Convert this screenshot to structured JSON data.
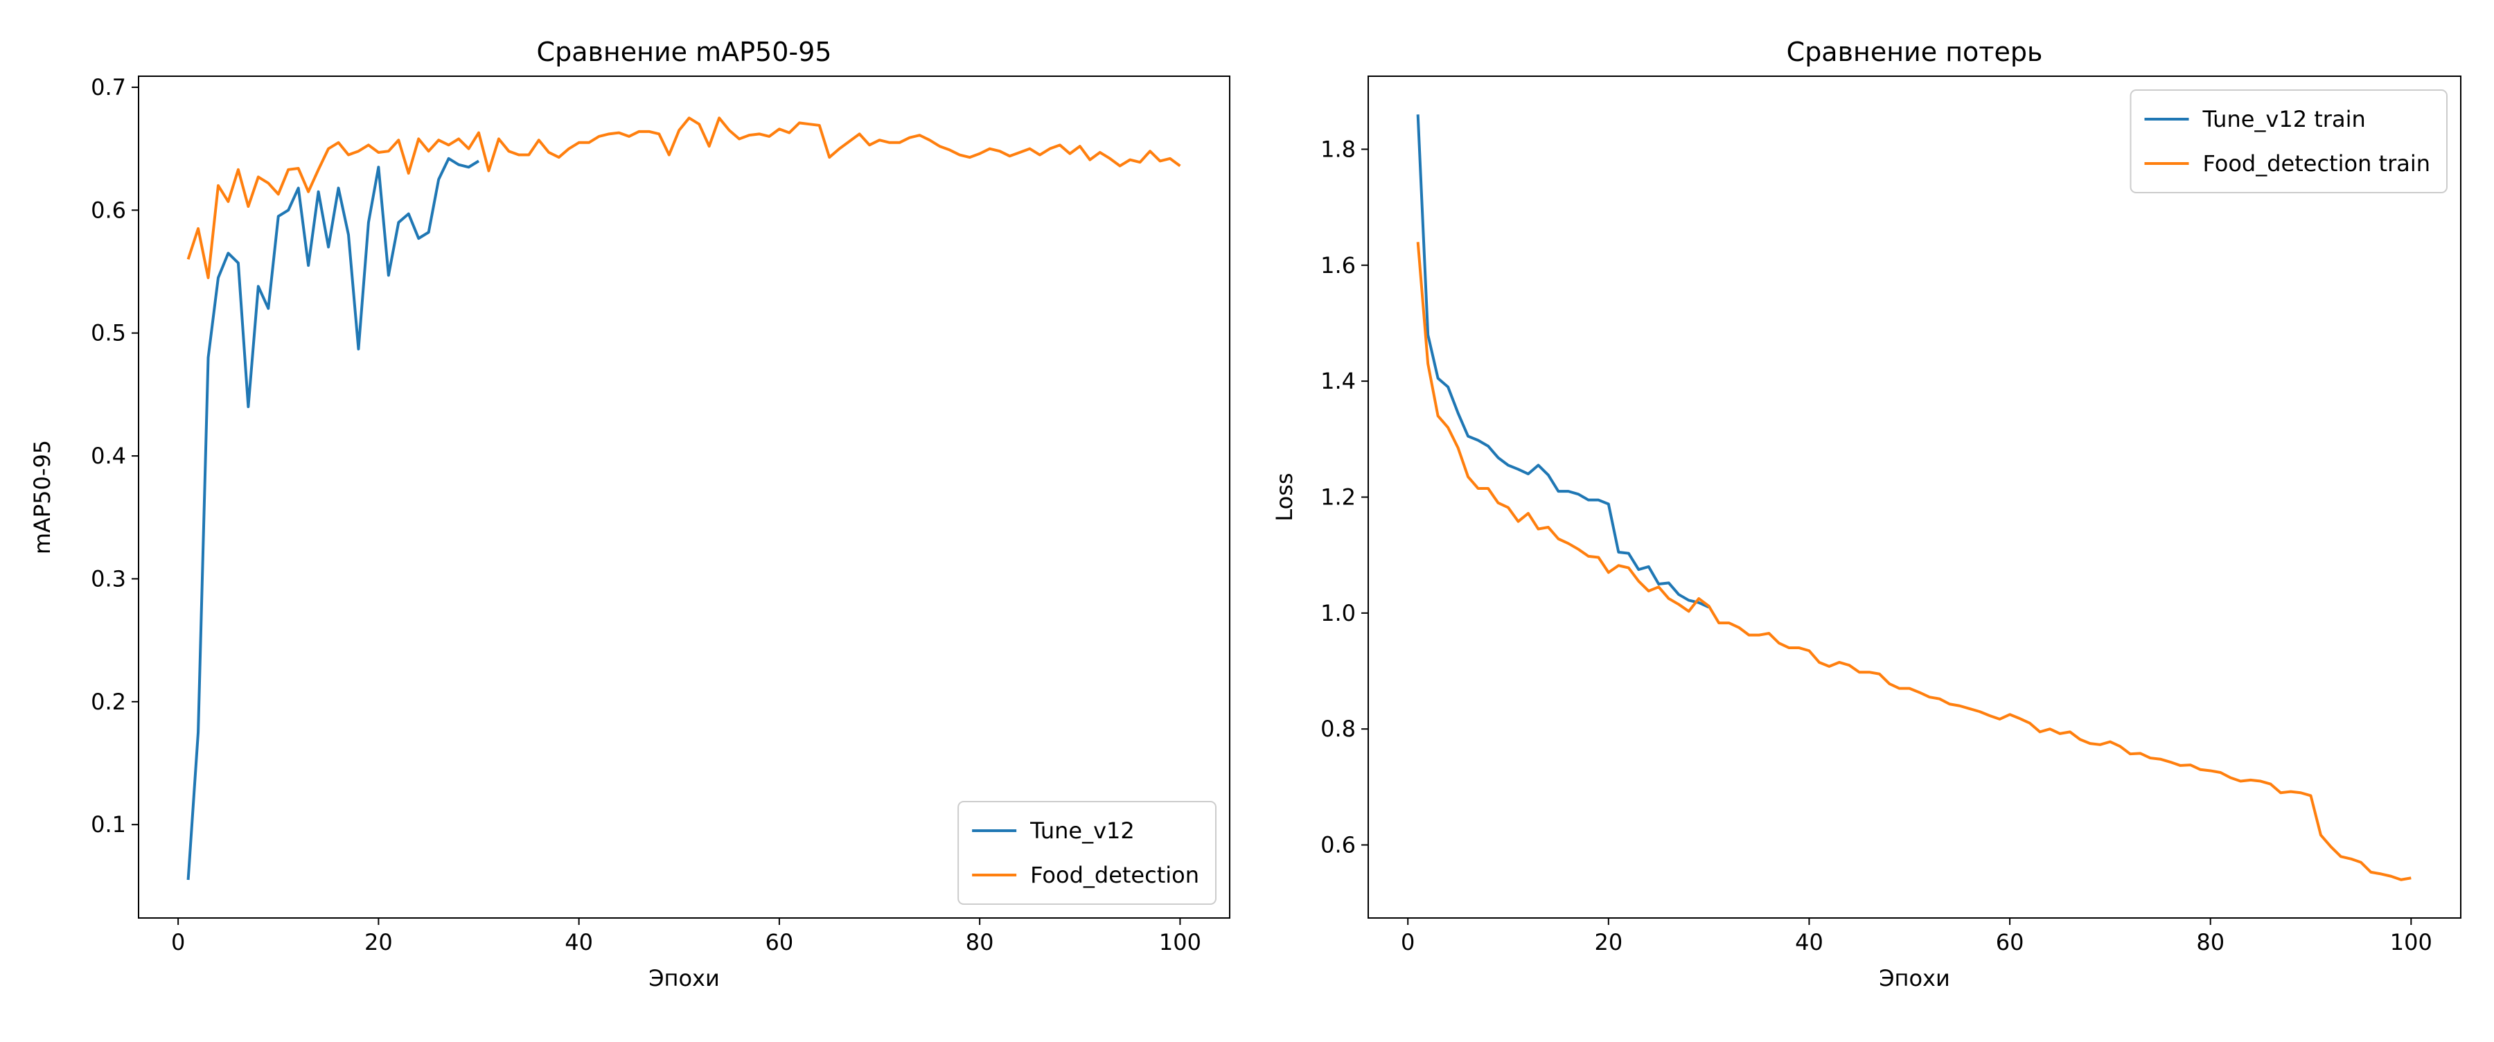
{
  "chart_data": [
    {
      "type": "line",
      "title": "Сравнение mAP50-95",
      "xlabel": "Эпохи",
      "ylabel": "mAP50-95",
      "xlim": [
        -3.95,
        104.95
      ],
      "ylim": [
        0.024,
        0.709
      ],
      "xticks": [
        0,
        20,
        40,
        60,
        80,
        100
      ],
      "yticks": [
        0.1,
        0.2,
        0.3,
        0.4,
        0.5,
        0.6,
        0.7
      ],
      "legend": "lower right",
      "series": [
        {
          "name": "Tune_v12",
          "color": "#1f77b4",
          "x": [
            1,
            2,
            3,
            4,
            5,
            6,
            7,
            8,
            9,
            10,
            11,
            12,
            13,
            14,
            15,
            16,
            17,
            18,
            19,
            20,
            21,
            22,
            23,
            24,
            25,
            26,
            27,
            28,
            29,
            30
          ],
          "values": [
            0.055,
            0.175,
            0.48,
            0.545,
            0.565,
            0.557,
            0.44,
            0.538,
            0.52,
            0.595,
            0.6,
            0.618,
            0.555,
            0.615,
            0.57,
            0.618,
            0.58,
            0.487,
            0.59,
            0.635,
            0.547,
            0.59,
            0.597,
            0.577,
            0.582,
            0.625,
            0.642,
            0.637,
            0.635,
            0.64
          ]
        },
        {
          "name": "Food_detection",
          "color": "#ff7f0e",
          "x": [
            1,
            2,
            3,
            4,
            5,
            6,
            7,
            8,
            9,
            10,
            11,
            12,
            13,
            14,
            15,
            16,
            17,
            18,
            19,
            20,
            21,
            22,
            23,
            24,
            25,
            26,
            27,
            28,
            29,
            30,
            31,
            32,
            33,
            34,
            35,
            36,
            37,
            38,
            39,
            40,
            41,
            42,
            43,
            44,
            45,
            46,
            47,
            48,
            49,
            50,
            51,
            52,
            53,
            54,
            55,
            56,
            57,
            58,
            59,
            60,
            61,
            62,
            63,
            64,
            65,
            66,
            67,
            68,
            69,
            70,
            71,
            72,
            73,
            74,
            75,
            76,
            77,
            78,
            79,
            80,
            81,
            82,
            83,
            84,
            85,
            86,
            87,
            88,
            89,
            90,
            91,
            92,
            93,
            94,
            95,
            96,
            97,
            98,
            99,
            100
          ],
          "values": [
            0.56,
            0.585,
            0.545,
            0.62,
            0.607,
            0.633,
            0.603,
            0.627,
            0.622,
            0.613,
            0.633,
            0.634,
            0.615,
            0.633,
            0.65,
            0.655,
            0.645,
            0.648,
            0.653,
            0.647,
            0.648,
            0.657,
            0.63,
            0.658,
            0.648,
            0.657,
            0.653,
            0.658,
            0.65,
            0.663,
            0.632,
            0.658,
            0.648,
            0.645,
            0.645,
            0.657,
            0.647,
            0.643,
            0.65,
            0.655,
            0.655,
            0.66,
            0.662,
            0.663,
            0.66,
            0.664,
            0.664,
            0.662,
            0.645,
            0.665,
            0.675,
            0.67,
            0.652,
            0.675,
            0.665,
            0.658,
            0.661,
            0.662,
            0.66,
            0.666,
            0.663,
            0.671,
            0.67,
            0.669,
            0.643,
            0.65,
            0.656,
            0.662,
            0.653,
            0.657,
            0.655,
            0.655,
            0.659,
            0.661,
            0.657,
            0.652,
            0.649,
            0.645,
            0.643,
            0.646,
            0.65,
            0.648,
            0.644,
            0.647,
            0.65,
            0.645,
            0.65,
            0.653,
            0.646,
            0.652,
            0.641,
            0.647,
            0.642,
            0.636,
            0.641,
            0.639,
            0.648,
            0.64,
            0.642,
            0.636
          ]
        }
      ]
    },
    {
      "type": "line",
      "title": "Сравнение потерь",
      "xlabel": "Эпохи",
      "ylabel": "Loss",
      "xlim": [
        -3.95,
        104.95
      ],
      "ylim": [
        0.474,
        1.926
      ],
      "xticks": [
        0,
        20,
        40,
        60,
        80,
        100
      ],
      "yticks": [
        0.6,
        0.8,
        {
          "value": 1,
          "label": "1.0"
        },
        1.2,
        1.4,
        1.6,
        1.8
      ],
      "legend": "upper right",
      "series": [
        {
          "name": "Tune_v12 train",
          "color": "#1f77b4",
          "x": [
            1,
            2,
            3,
            4,
            5,
            6,
            7,
            8,
            9,
            10,
            11,
            12,
            13,
            14,
            15,
            16,
            17,
            18,
            19,
            20,
            21,
            22,
            23,
            24,
            25,
            26,
            27,
            28,
            29,
            30
          ],
          "values": [
            1.86,
            1.48,
            1.405,
            1.39,
            1.345,
            1.305,
            1.298,
            1.288,
            1.268,
            1.255,
            1.248,
            1.24,
            1.255,
            1.238,
            1.21,
            1.21,
            1.205,
            1.195,
            1.195,
            1.188,
            1.105,
            1.103,
            1.075,
            1.08,
            1.05,
            1.052,
            1.032,
            1.022,
            1.018,
            1.01
          ]
        },
        {
          "name": "Food_detection train",
          "color": "#ff7f0e",
          "x": [
            1,
            2,
            3,
            4,
            5,
            6,
            7,
            8,
            9,
            10,
            11,
            12,
            13,
            14,
            15,
            16,
            17,
            18,
            19,
            20,
            21,
            22,
            23,
            24,
            25,
            26,
            27,
            28,
            29,
            30,
            31,
            32,
            33,
            34,
            35,
            36,
            37,
            38,
            39,
            40,
            41,
            42,
            43,
            44,
            45,
            46,
            47,
            48,
            49,
            50,
            51,
            52,
            53,
            54,
            55,
            56,
            57,
            58,
            59,
            60,
            61,
            62,
            63,
            64,
            65,
            66,
            67,
            68,
            69,
            70,
            71,
            72,
            73,
            74,
            75,
            76,
            77,
            78,
            79,
            80,
            81,
            82,
            83,
            84,
            85,
            86,
            87,
            88,
            89,
            90,
            91,
            92,
            93,
            94,
            95,
            96,
            97,
            98,
            99,
            100
          ],
          "values": [
            1.64,
            1.43,
            1.34,
            1.32,
            1.285,
            1.235,
            1.215,
            1.215,
            1.19,
            1.182,
            1.158,
            1.172,
            1.145,
            1.148,
            1.128,
            1.12,
            1.11,
            1.098,
            1.096,
            1.07,
            1.082,
            1.078,
            1.055,
            1.038,
            1.045,
            1.025,
            1.015,
            1.003,
            1.025,
            1.012,
            0.983,
            0.983,
            0.975,
            0.962,
            0.962,
            0.965,
            0.948,
            0.94,
            0.94,
            0.935,
            0.915,
            0.908,
            0.915,
            0.91,
            0.898,
            0.898,
            0.895,
            0.878,
            0.87,
            0.87,
            0.863,
            0.855,
            0.852,
            0.843,
            0.84,
            0.835,
            0.83,
            0.823,
            0.817,
            0.825,
            0.818,
            0.81,
            0.795,
            0.8,
            0.792,
            0.795,
            0.782,
            0.775,
            0.773,
            0.778,
            0.77,
            0.757,
            0.758,
            0.75,
            0.748,
            0.743,
            0.737,
            0.738,
            0.73,
            0.728,
            0.725,
            0.716,
            0.71,
            0.712,
            0.71,
            0.705,
            0.69,
            0.692,
            0.69,
            0.685,
            0.617,
            0.597,
            0.58,
            0.576,
            0.57,
            0.553,
            0.55,
            0.546,
            0.54,
            0.543
          ]
        }
      ]
    }
  ]
}
